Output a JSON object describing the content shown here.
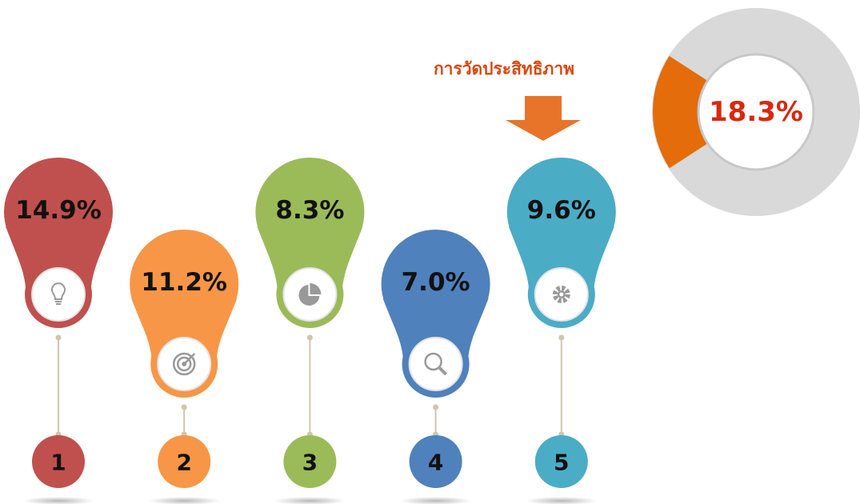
{
  "heading": "การวัดประสิทธิภาพ",
  "donut": {
    "value": 18.3,
    "label": "18.3%"
  },
  "items": [
    {
      "number": "1",
      "percent": "14.9%",
      "color": "#c0504d"
    },
    {
      "number": "2",
      "percent": "11.2%",
      "color": "#f79646"
    },
    {
      "number": "3",
      "percent": "8.3%",
      "color": "#9bbb59"
    },
    {
      "number": "4",
      "percent": "7.0%",
      "color": "#4f81bd"
    },
    {
      "number": "5",
      "percent": "9.6%",
      "color": "#4bacc6"
    }
  ]
}
